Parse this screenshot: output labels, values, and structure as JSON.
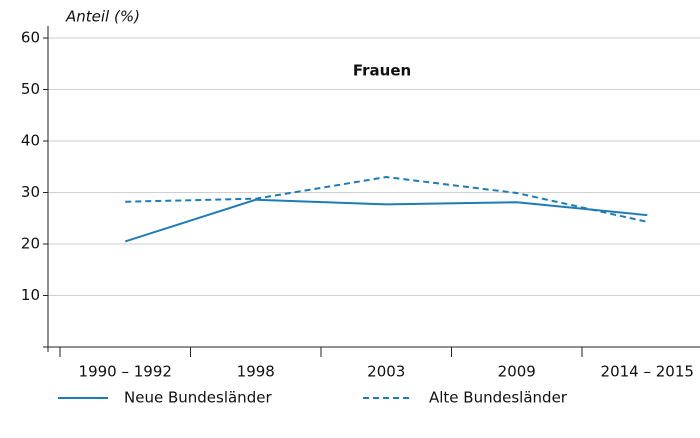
{
  "chart_data": {
    "type": "line",
    "title": "Frauen",
    "y_label": "Anteil (%)",
    "categories": [
      "1990 – 1992",
      "1998",
      "2003",
      "2009",
      "2014 – 2015"
    ],
    "series": [
      {
        "name": "Neue Bundesländer",
        "color": "#1f7bb6",
        "linestyle": "solid",
        "values": [
          20.5,
          28.6,
          27.7,
          28.1,
          25.6
        ]
      },
      {
        "name": "Alte Bundesländer",
        "color": "#1f7bb6",
        "linestyle": "dashed",
        "values": [
          28.2,
          28.8,
          33.0,
          29.9,
          24.3
        ]
      }
    ],
    "ylim": [
      0,
      60
    ],
    "yticks": [
      10,
      20,
      30,
      40,
      50,
      60
    ],
    "grid": true
  }
}
